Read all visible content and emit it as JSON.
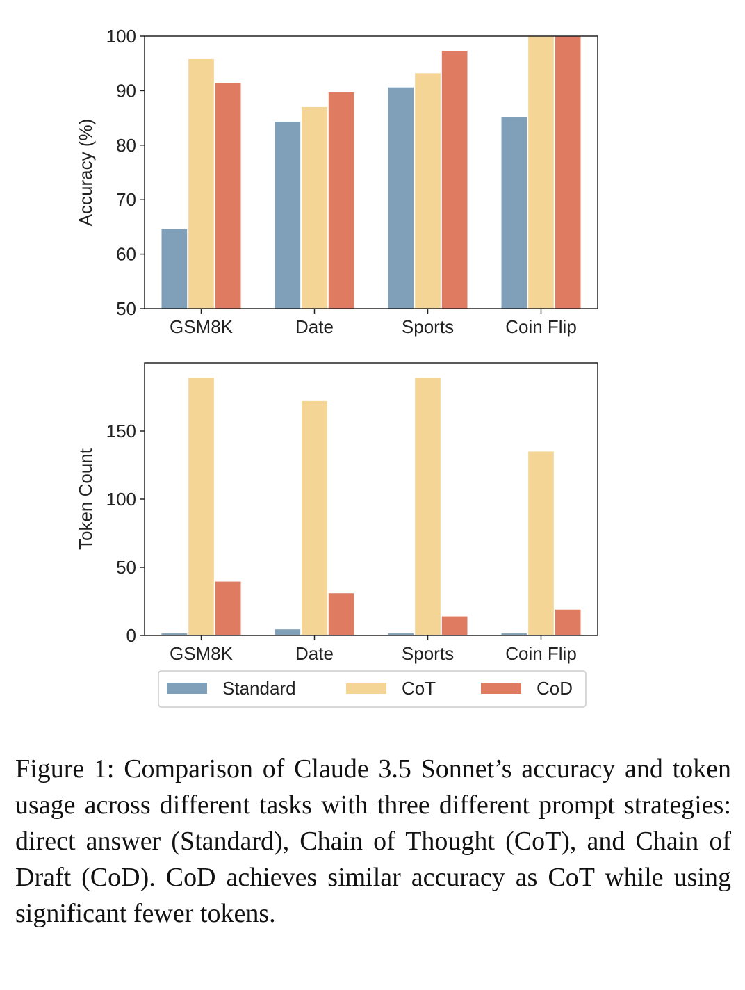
{
  "chart_data": [
    {
      "type": "bar",
      "categories": [
        "GSM8K",
        "Date",
        "Sports",
        "Coin Flip"
      ],
      "series": [
        {
          "name": "Standard",
          "values": [
            64.6,
            84.3,
            90.6,
            85.2
          ]
        },
        {
          "name": "CoT",
          "values": [
            95.8,
            87.0,
            93.2,
            100.0
          ]
        },
        {
          "name": "CoD",
          "values": [
            91.4,
            89.7,
            97.3,
            100.0
          ]
        }
      ],
      "title": "",
      "xlabel": "",
      "ylabel": "Accuracy (%)",
      "ylim": [
        50,
        100
      ],
      "yticks": [
        "50",
        "60",
        "70",
        "80",
        "90",
        "100"
      ],
      "grid": false
    },
    {
      "type": "bar",
      "categories": [
        "GSM8K",
        "Date",
        "Sports",
        "Coin Flip"
      ],
      "series": [
        {
          "name": "Standard",
          "values": [
            1.5,
            4.5,
            1.5,
            1.5
          ]
        },
        {
          "name": "CoT",
          "values": [
            189,
            172,
            189,
            135
          ]
        },
        {
          "name": "CoD",
          "values": [
            39.5,
            31,
            14,
            19
          ]
        }
      ],
      "title": "",
      "xlabel": "",
      "ylabel": "Token Count",
      "ylim": [
        0,
        200
      ],
      "yticks": [
        "0",
        "50",
        "100",
        "150"
      ],
      "grid": false
    }
  ],
  "legend": {
    "placement": "bottom-center",
    "entries": [
      "Standard",
      "CoT",
      "CoD"
    ]
  },
  "colors": {
    "Standard": "#7fa0b8",
    "CoT": "#f5d596",
    "CoD": "#de7b60"
  },
  "caption": "Figure 1: Comparison of Claude 3.5 Sonnet’s accuracy and token usage across different tasks with three different prompt strategies: direct answer (Standard), Chain of Thought (CoT), and Chain of Draft (CoD). CoD achieves similar accuracy as CoT while using significant fewer tokens."
}
